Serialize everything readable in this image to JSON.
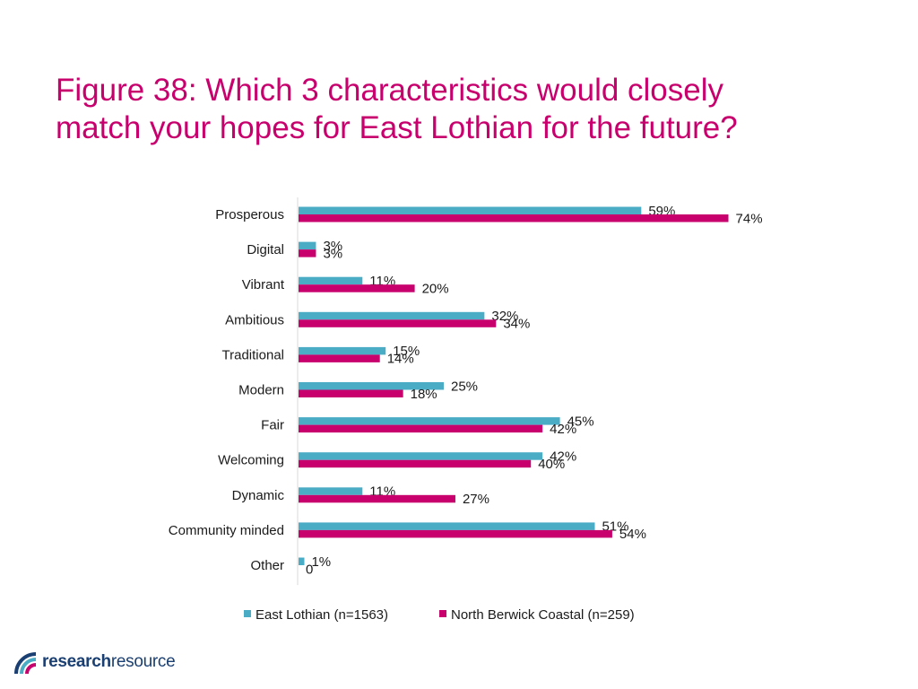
{
  "title_line1": "Figure 38: Which 3 characteristics would closely",
  "title_line2": "match your hopes for East Lothian for the future?",
  "logo": {
    "part1": "research",
    "part2": "resource"
  },
  "chart_data": {
    "type": "bar",
    "orientation": "horizontal",
    "categories": [
      "Prosperous",
      "Digital",
      "Vibrant",
      "Ambitious",
      "Traditional",
      "Modern",
      "Fair",
      "Welcoming",
      "Dynamic",
      "Community minded",
      "Other"
    ],
    "series": [
      {
        "name": "East Lothian (n=1563)",
        "color": "#4bacc6",
        "values": [
          59,
          3,
          11,
          32,
          15,
          25,
          45,
          42,
          11,
          51,
          1
        ],
        "labels": [
          "59%",
          "3%",
          "11%",
          "32%",
          "15%",
          "25%",
          "45%",
          "42%",
          "11%",
          "51%",
          "1%"
        ]
      },
      {
        "name": "North Berwick Coastal (n=259)",
        "color": "#c8006e",
        "values": [
          74,
          3,
          20,
          34,
          14,
          18,
          42,
          40,
          27,
          54,
          0
        ],
        "labels": [
          "74%",
          "3%",
          "20%",
          "34%",
          "14%",
          "18%",
          "42%",
          "40%",
          "27%",
          "54%",
          "0"
        ]
      }
    ],
    "xlim": [
      0,
      80
    ],
    "legend_position": "bottom",
    "grid": false
  }
}
